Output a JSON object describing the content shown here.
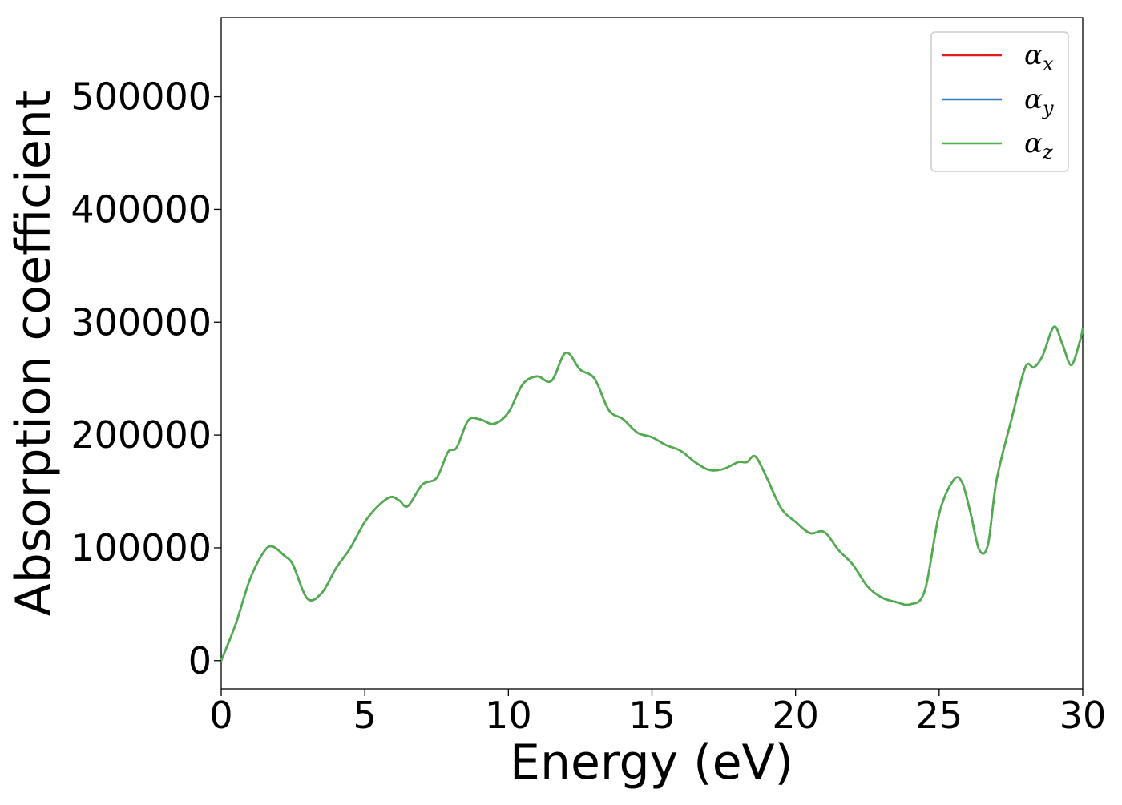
{
  "chart_data": {
    "type": "line",
    "xlabel": "Energy (eV)",
    "ylabel": "Absorption coefficient",
    "xlim": [
      0,
      30
    ],
    "ylim": [
      -25000,
      570000
    ],
    "xticks": [
      0,
      5,
      10,
      15,
      20,
      25,
      30
    ],
    "yticks": [
      0,
      100000,
      200000,
      300000,
      400000,
      500000
    ],
    "grid": false,
    "legend_position": "top-right",
    "series": [
      {
        "name_base": "α",
        "name_sub": "x",
        "color": "#e41a1c"
      },
      {
        "name_base": "α",
        "name_sub": "y",
        "color": "#377eb8"
      },
      {
        "name_base": "α",
        "name_sub": "z",
        "color": "#4daf4a"
      }
    ],
    "x": [
      0,
      0.5,
      1.0,
      1.5,
      1.8,
      2.2,
      2.5,
      3.0,
      3.5,
      4.0,
      4.5,
      5.0,
      5.5,
      5.9,
      6.2,
      6.5,
      7.0,
      7.5,
      7.9,
      8.2,
      8.6,
      9.0,
      9.5,
      10.0,
      10.5,
      11.0,
      11.5,
      12.0,
      12.5,
      13.0,
      13.5,
      14.0,
      14.5,
      15.0,
      15.5,
      16.0,
      16.5,
      17.0,
      17.5,
      18.0,
      18.3,
      18.6,
      19.0,
      19.5,
      20.0,
      20.5,
      21.0,
      21.5,
      22.0,
      22.5,
      23.0,
      23.5,
      24.0,
      24.5,
      25.0,
      25.5,
      25.8,
      26.1,
      26.4,
      26.7,
      27.0,
      27.5,
      28.0,
      28.3,
      28.6,
      29.0,
      29.3,
      29.6,
      29.9,
      30.0
    ],
    "y": [
      0,
      32000,
      72000,
      97000,
      101000,
      93000,
      85000,
      55000,
      60000,
      82000,
      100000,
      123000,
      138000,
      145000,
      142000,
      137000,
      156000,
      162000,
      185000,
      189000,
      213000,
      214000,
      210000,
      220000,
      245000,
      252000,
      248000,
      273000,
      258000,
      250000,
      222000,
      214000,
      202000,
      198000,
      191000,
      186000,
      176000,
      169000,
      170000,
      176000,
      176000,
      181000,
      162000,
      135000,
      123000,
      113000,
      114000,
      98000,
      85000,
      66000,
      56000,
      52000,
      50000,
      62000,
      130000,
      160000,
      158000,
      130000,
      98000,
      103000,
      160000,
      212000,
      260000,
      260000,
      270000,
      296000,
      280000,
      262000,
      283000,
      294000
    ]
  }
}
